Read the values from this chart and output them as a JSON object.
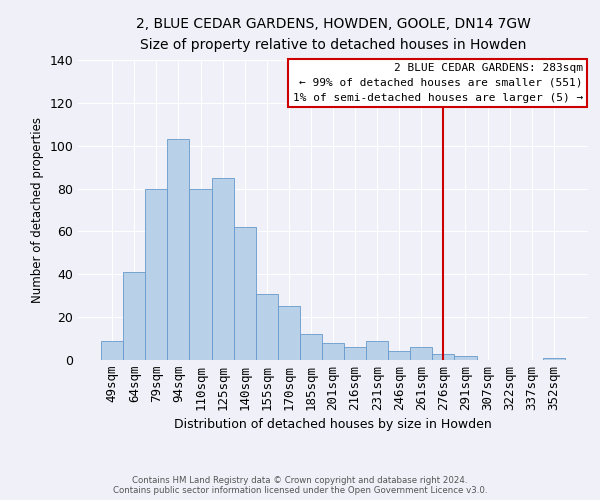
{
  "title": "2, BLUE CEDAR GARDENS, HOWDEN, GOOLE, DN14 7GW",
  "subtitle": "Size of property relative to detached houses in Howden",
  "xlabel": "Distribution of detached houses by size in Howden",
  "ylabel": "Number of detached properties",
  "bar_labels": [
    "49sqm",
    "64sqm",
    "79sqm",
    "94sqm",
    "110sqm",
    "125sqm",
    "140sqm",
    "155sqm",
    "170sqm",
    "185sqm",
    "201sqm",
    "216sqm",
    "231sqm",
    "246sqm",
    "261sqm",
    "276sqm",
    "291sqm",
    "307sqm",
    "322sqm",
    "337sqm",
    "352sqm"
  ],
  "bar_values": [
    9,
    41,
    80,
    103,
    80,
    85,
    62,
    31,
    25,
    12,
    8,
    6,
    9,
    4,
    6,
    3,
    2,
    0,
    0,
    0,
    1
  ],
  "bar_color": "#b8d0e8",
  "bar_edge_color": "#6699cc",
  "vline_color": "#cc0000",
  "ylim": [
    0,
    140
  ],
  "annotation_title": "2 BLUE CEDAR GARDENS: 283sqm",
  "annotation_line1": "← 99% of detached houses are smaller (551)",
  "annotation_line2": "1% of semi-detached houses are larger (5) →",
  "annotation_box_color": "#cc0000",
  "footer_line1": "Contains HM Land Registry data © Crown copyright and database right 2024.",
  "footer_line2": "Contains public sector information licensed under the Open Government Licence v3.0.",
  "background_color": "#f0f0f8",
  "grid_color": "#ffffff",
  "yticks": [
    0,
    20,
    40,
    60,
    80,
    100,
    120,
    140
  ]
}
